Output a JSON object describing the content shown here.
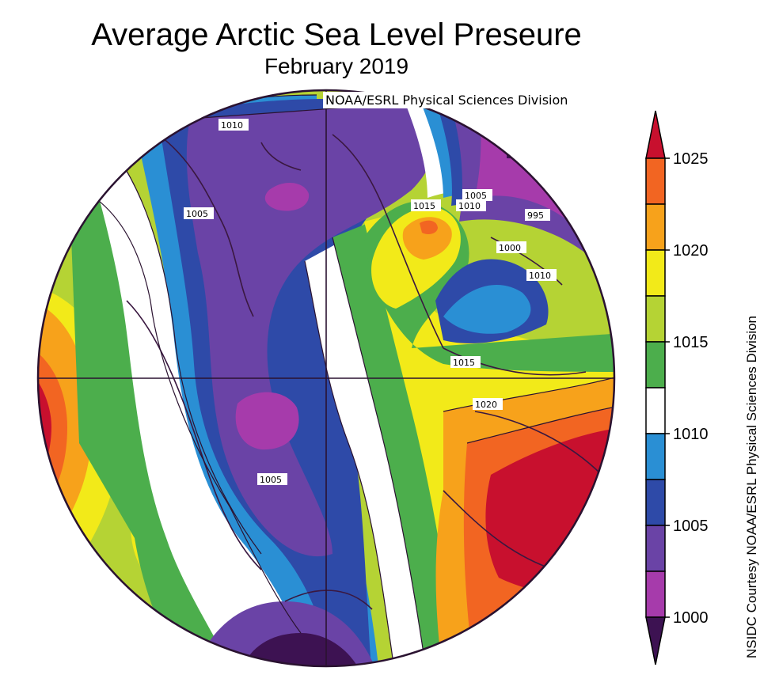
{
  "title": "Average Arctic Sea Level Preseure",
  "subtitle": "February 2019",
  "credit_top": "NOAA/ESRL Physical Sciences Division",
  "credit_side": "NSIDC Courtesy NOAA/ESRL Physical Sciences Division",
  "colorbar": {
    "ticks": [
      "1025",
      "1020",
      "1015",
      "1010",
      "1005",
      "1000"
    ],
    "colors": [
      "#c8102e",
      "#f26522",
      "#f7a21b",
      "#f2ea19",
      "#b5d334",
      "#4cae4c",
      "#ffffff",
      "#2a8fd4",
      "#2e4aa8",
      "#6a43a6",
      "#a63bab",
      "#3d1252"
    ]
  },
  "contour_labels": [
    "1010",
    "1005",
    "1015",
    "1010",
    "1005",
    "995",
    "1000",
    "1010",
    "1015",
    "1020",
    "1005"
  ]
}
